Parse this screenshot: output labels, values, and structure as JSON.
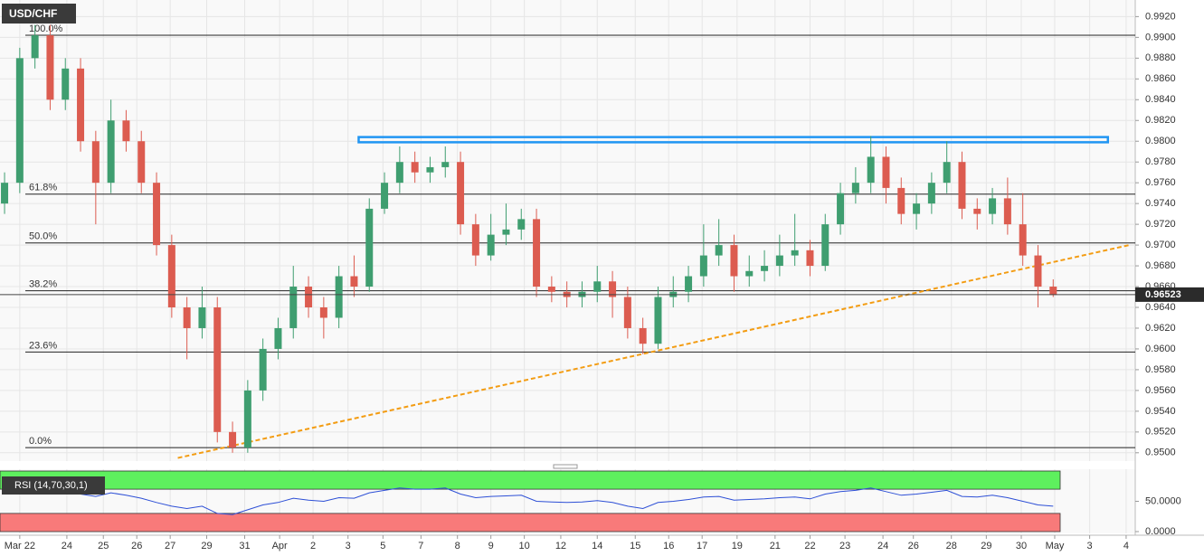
{
  "chart_data": [
    {
      "type": "candlestick",
      "title": "USD/CHF",
      "up_color": "#3f9e70",
      "down_color": "#dc5c50",
      "open": [
        0.974,
        0.976,
        0.988,
        0.9902,
        0.984,
        0.987,
        0.98,
        0.976,
        0.982,
        0.98,
        0.976,
        0.97,
        0.964,
        0.962,
        0.964,
        0.952,
        0.9505,
        0.956,
        0.96,
        0.962,
        0.966,
        0.964,
        0.963,
        0.967,
        0.966,
        0.9735,
        0.976,
        0.978,
        0.977,
        0.9775,
        0.978,
        0.972,
        0.969,
        0.971,
        0.9715,
        0.9725,
        0.966,
        0.9655,
        0.965,
        0.9655,
        0.9665,
        0.965,
        0.962,
        0.9605,
        0.965,
        0.9655,
        0.967,
        0.969,
        0.97,
        0.967,
        0.9675,
        0.968,
        0.969,
        0.9695,
        0.968,
        0.972,
        0.975,
        0.976,
        0.9785,
        0.9755,
        0.973,
        0.974,
        0.976,
        0.978,
        0.9735,
        0.973,
        0.9745,
        0.972,
        0.969,
        0.966
      ],
      "high": [
        0.977,
        0.989,
        0.9912,
        0.9912,
        0.988,
        0.988,
        0.981,
        0.984,
        0.983,
        0.981,
        0.977,
        0.971,
        0.965,
        0.966,
        0.965,
        0.953,
        0.957,
        0.961,
        0.963,
        0.968,
        0.967,
        0.965,
        0.968,
        0.969,
        0.9745,
        0.977,
        0.9795,
        0.979,
        0.9785,
        0.9795,
        0.979,
        0.973,
        0.973,
        0.974,
        0.9735,
        0.9735,
        0.967,
        0.9665,
        0.9665,
        0.968,
        0.9675,
        0.966,
        0.963,
        0.966,
        0.967,
        0.968,
        0.972,
        0.9725,
        0.971,
        0.969,
        0.9695,
        0.971,
        0.973,
        0.9705,
        0.973,
        0.976,
        0.9775,
        0.9805,
        0.9795,
        0.9765,
        0.975,
        0.977,
        0.98,
        0.979,
        0.9745,
        0.9755,
        0.9765,
        0.975,
        0.97,
        0.9667
      ],
      "low": [
        0.973,
        0.975,
        0.987,
        0.983,
        0.983,
        0.979,
        0.972,
        0.975,
        0.979,
        0.975,
        0.969,
        0.963,
        0.959,
        0.961,
        0.951,
        0.95,
        0.95,
        0.955,
        0.959,
        0.961,
        0.963,
        0.961,
        0.962,
        0.965,
        0.9655,
        0.973,
        0.975,
        0.976,
        0.976,
        0.9765,
        0.971,
        0.968,
        0.9685,
        0.97,
        0.9705,
        0.965,
        0.9645,
        0.964,
        0.964,
        0.9645,
        0.963,
        0.961,
        0.9595,
        0.96,
        0.964,
        0.9645,
        0.966,
        0.968,
        0.9655,
        0.966,
        0.9665,
        0.967,
        0.968,
        0.967,
        0.9675,
        0.971,
        0.974,
        0.975,
        0.974,
        0.972,
        0.9715,
        0.973,
        0.975,
        0.9725,
        0.9715,
        0.972,
        0.971,
        0.968,
        0.964,
        0.965
      ],
      "close": [
        0.976,
        0.988,
        0.9902,
        0.984,
        0.987,
        0.98,
        0.976,
        0.982,
        0.98,
        0.976,
        0.97,
        0.964,
        0.962,
        0.964,
        0.952,
        0.9505,
        0.956,
        0.96,
        0.962,
        0.966,
        0.964,
        0.963,
        0.967,
        0.966,
        0.9735,
        0.976,
        0.978,
        0.977,
        0.9775,
        0.978,
        0.972,
        0.969,
        0.971,
        0.9715,
        0.9725,
        0.966,
        0.9655,
        0.965,
        0.9655,
        0.9665,
        0.965,
        0.962,
        0.9605,
        0.965,
        0.9655,
        0.967,
        0.969,
        0.97,
        0.967,
        0.9675,
        0.968,
        0.969,
        0.9695,
        0.968,
        0.972,
        0.975,
        0.976,
        0.9785,
        0.9755,
        0.973,
        0.974,
        0.976,
        0.978,
        0.9735,
        0.973,
        0.9745,
        0.972,
        0.969,
        0.966,
        0.9652
      ],
      "xlim": [
        -0.3,
        74.4
      ],
      "xticks": [
        {
          "value": 1.0,
          "label": "Mar 22"
        },
        {
          "value": 4.1,
          "label": "24"
        },
        {
          "value": 6.5,
          "label": "25"
        },
        {
          "value": 8.7,
          "label": "26"
        },
        {
          "value": 10.9,
          "label": "27"
        },
        {
          "value": 13.3,
          "label": "29"
        },
        {
          "value": 15.8,
          "label": "31"
        },
        {
          "value": 18.1,
          "label": "Apr"
        },
        {
          "value": 20.3,
          "label": "2"
        },
        {
          "value": 22.6,
          "label": "3"
        },
        {
          "value": 24.9,
          "label": "5"
        },
        {
          "value": 27.4,
          "label": "7"
        },
        {
          "value": 29.8,
          "label": "8"
        },
        {
          "value": 32.0,
          "label": "9"
        },
        {
          "value": 34.2,
          "label": "10"
        },
        {
          "value": 36.6,
          "label": "12"
        },
        {
          "value": 39.0,
          "label": "14"
        },
        {
          "value": 41.5,
          "label": "15"
        },
        {
          "value": 43.7,
          "label": "16"
        },
        {
          "value": 45.9,
          "label": "17"
        },
        {
          "value": 48.2,
          "label": "19"
        },
        {
          "value": 50.7,
          "label": "21"
        },
        {
          "value": 53.0,
          "label": "22"
        },
        {
          "value": 55.3,
          "label": "23"
        },
        {
          "value": 57.8,
          "label": "24"
        },
        {
          "value": 59.8,
          "label": "26"
        },
        {
          "value": 62.3,
          "label": "28"
        },
        {
          "value": 64.6,
          "label": "29"
        },
        {
          "value": 66.9,
          "label": "30"
        },
        {
          "value": 69.1,
          "label": "May"
        },
        {
          "value": 71.4,
          "label": "3"
        },
        {
          "value": 73.8,
          "label": "4"
        }
      ],
      "ylim": [
        0.9492,
        0.9936
      ],
      "yticks": [
        {
          "value": 0.95,
          "label": "0.9500"
        },
        {
          "value": 0.952,
          "label": "0.9520"
        },
        {
          "value": 0.954,
          "label": "0.9540"
        },
        {
          "value": 0.956,
          "label": "0.9560"
        },
        {
          "value": 0.958,
          "label": "0.9580"
        },
        {
          "value": 0.96,
          "label": "0.9600"
        },
        {
          "value": 0.962,
          "label": "0.9620"
        },
        {
          "value": 0.964,
          "label": "0.9640"
        },
        {
          "value": 0.966,
          "label": "0.9660"
        },
        {
          "value": 0.968,
          "label": "0.9680"
        },
        {
          "value": 0.97,
          "label": "0.9700"
        },
        {
          "value": 0.972,
          "label": "0.9720"
        },
        {
          "value": 0.974,
          "label": "0.9740"
        },
        {
          "value": 0.976,
          "label": "0.9760"
        },
        {
          "value": 0.978,
          "label": "0.9780"
        },
        {
          "value": 0.98,
          "label": "0.9800"
        },
        {
          "value": 0.982,
          "label": "0.9820"
        },
        {
          "value": 0.984,
          "label": "0.9840"
        },
        {
          "value": 0.986,
          "label": "0.9860"
        },
        {
          "value": 0.988,
          "label": "0.9880"
        },
        {
          "value": 0.99,
          "label": "0.9900"
        },
        {
          "value": 0.992,
          "label": "0.9920"
        }
      ],
      "grid": true,
      "fib_levels": [
        {
          "label": "100.0%",
          "value": 0.9902
        },
        {
          "label": "61.8%",
          "value": 0.9749
        },
        {
          "label": "50.0%",
          "value": 0.9702
        },
        {
          "label": "38.2%",
          "value": 0.9656
        },
        {
          "label": "23.6%",
          "value": 0.9597
        },
        {
          "label": "0.0%",
          "value": 0.9505
        }
      ],
      "resistance": {
        "x": [
          23.3,
          72.6
        ],
        "y": [
          0.9799,
          0.9804
        ],
        "color": "#2196f3"
      },
      "trendline": {
        "x": [
          11.4,
          74.0
        ],
        "y": [
          0.9495,
          0.97
        ],
        "color": "#f39c12"
      },
      "last_price": 0.96523
    },
    {
      "type": "line",
      "title": "RSI (14,70,30,1)",
      "color": "#2d4fd6",
      "values": [
        68,
        72,
        74,
        66,
        70,
        62,
        58,
        64,
        60,
        55,
        48,
        42,
        38,
        42,
        30,
        28,
        36,
        44,
        48,
        55,
        52,
        50,
        56,
        55,
        64,
        68,
        72,
        70,
        70,
        72,
        62,
        56,
        58,
        59,
        60,
        50,
        49,
        48,
        49,
        51,
        48,
        42,
        38,
        48,
        50,
        53,
        57,
        58,
        52,
        53,
        54,
        56,
        57,
        54,
        62,
        66,
        68,
        72,
        66,
        60,
        62,
        65,
        68,
        58,
        57,
        60,
        56,
        50,
        44,
        42
      ],
      "ylim": [
        0,
        100
      ],
      "yticks": [
        {
          "value": 50,
          "label": "50.0000"
        },
        {
          "value": 0,
          "label": "0.0000"
        }
      ],
      "bands": [
        {
          "from": 70,
          "to": 100,
          "color": "#5ef05e"
        },
        {
          "from": 0,
          "to": 30,
          "color": "#f87a7a"
        }
      ]
    }
  ]
}
